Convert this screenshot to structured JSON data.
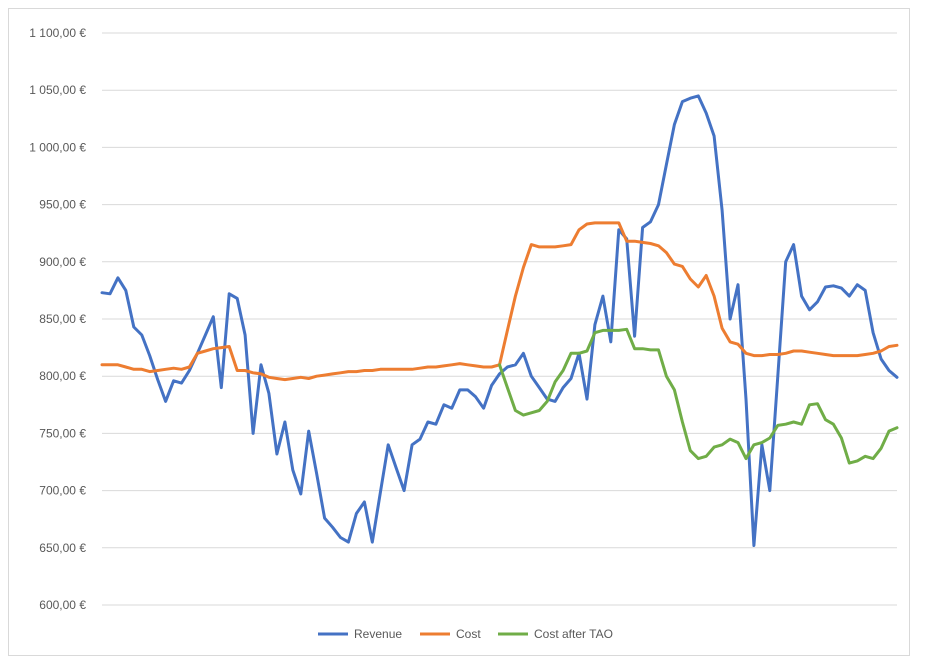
{
  "chart_data": {
    "type": "line",
    "title": "",
    "xlabel": "",
    "ylabel": "",
    "ylim": [
      600,
      1100
    ],
    "yticks": [
      600,
      650,
      700,
      750,
      800,
      850,
      900,
      950,
      1000,
      1050,
      1100
    ],
    "ytick_labels": [
      "600,00 €",
      "650,00 €",
      "700,00 €",
      "750,00 €",
      "800,00 €",
      "850,00 €",
      "900,00 €",
      "950,00 €",
      "1 000,00 €",
      "1 050,00 €",
      "1 100,00 €"
    ],
    "grid": true,
    "legend_position": "bottom",
    "x": [
      0,
      3,
      6,
      9,
      12,
      15,
      18,
      21,
      24,
      27,
      30,
      33,
      36,
      39,
      42,
      45,
      48,
      51,
      54,
      57,
      60,
      63,
      66,
      69,
      72,
      75,
      78,
      81,
      84,
      87,
      90,
      93,
      96,
      99,
      102,
      105,
      108,
      111,
      114,
      117,
      120,
      123,
      126,
      129,
      132,
      135,
      138,
      141,
      144,
      147,
      150,
      153,
      156,
      159,
      162,
      165,
      168,
      171,
      174,
      177,
      180,
      183,
      186,
      189,
      192,
      195,
      198,
      201,
      204,
      207,
      210,
      213,
      216,
      219,
      222,
      225,
      228,
      231,
      234,
      237,
      240,
      243,
      246,
      249,
      252,
      255,
      258,
      261,
      264,
      267,
      270,
      273,
      276,
      279,
      282,
      285,
      288,
      291,
      294,
      297,
      300
    ],
    "series": [
      {
        "name": "Revenue",
        "color": "#4472C4",
        "values": [
          873,
          872,
          886,
          875,
          843,
          836,
          818,
          797,
          778,
          796,
          794,
          805,
          820,
          836,
          852,
          790,
          872,
          868,
          836,
          750,
          810,
          785,
          732,
          760,
          718,
          697,
          752,
          715,
          676,
          668,
          659,
          655,
          680,
          690,
          655,
          698,
          740,
          720,
          700,
          740,
          745,
          760,
          758,
          775,
          772,
          788,
          788,
          782,
          772,
          792,
          802,
          808,
          810,
          820,
          800,
          790,
          780,
          778,
          790,
          798,
          820,
          780,
          845,
          870,
          830,
          928,
          920,
          835,
          930,
          935,
          950,
          985,
          1020,
          1040,
          1043,
          1045,
          1030,
          1010,
          945,
          850,
          880,
          780,
          652,
          740,
          700,
          800,
          900,
          915,
          870,
          858,
          865,
          878,
          879,
          877,
          870,
          880,
          875,
          838,
          815,
          805,
          799
        ]
      },
      {
        "name": "Cost",
        "color": "#ED7D31",
        "values": [
          810,
          810,
          810,
          808,
          806,
          806,
          804,
          805,
          806,
          807,
          806,
          808,
          820,
          822,
          824,
          825,
          826,
          805,
          805,
          803,
          802,
          799,
          798,
          797,
          798,
          799,
          798,
          800,
          801,
          802,
          803,
          804,
          804,
          805,
          805,
          806,
          806,
          806,
          806,
          806,
          807,
          808,
          808,
          809,
          810,
          811,
          810,
          809,
          808,
          808,
          810,
          840,
          870,
          895,
          915,
          913,
          913,
          913,
          914,
          915,
          928,
          933,
          934,
          934,
          934,
          934,
          918,
          918,
          917,
          916,
          914,
          908,
          898,
          896,
          885,
          878,
          888,
          870,
          842,
          830,
          828,
          820,
          818,
          818,
          819,
          819,
          820,
          822,
          822,
          821,
          820,
          819,
          818,
          818,
          818,
          818,
          819,
          820,
          822,
          826,
          827
        ]
      },
      {
        "name": "Cost after TAO",
        "color": "#70AD47",
        "values": [
          null,
          null,
          null,
          null,
          null,
          null,
          null,
          null,
          null,
          null,
          null,
          null,
          null,
          null,
          null,
          null,
          null,
          null,
          null,
          null,
          null,
          null,
          null,
          null,
          null,
          null,
          null,
          null,
          null,
          null,
          null,
          null,
          null,
          null,
          null,
          null,
          null,
          null,
          null,
          null,
          null,
          null,
          null,
          null,
          null,
          null,
          null,
          null,
          null,
          null,
          810,
          790,
          770,
          766,
          768,
          770,
          778,
          795,
          805,
          820,
          820,
          822,
          838,
          840,
          840,
          840,
          841,
          824,
          824,
          823,
          823,
          800,
          788,
          760,
          735,
          728,
          730,
          738,
          740,
          745,
          742,
          728,
          740,
          742,
          746,
          757,
          758,
          760,
          758,
          775,
          776,
          762,
          758,
          746,
          724,
          726,
          730,
          728,
          737,
          752,
          755
        ]
      }
    ]
  }
}
